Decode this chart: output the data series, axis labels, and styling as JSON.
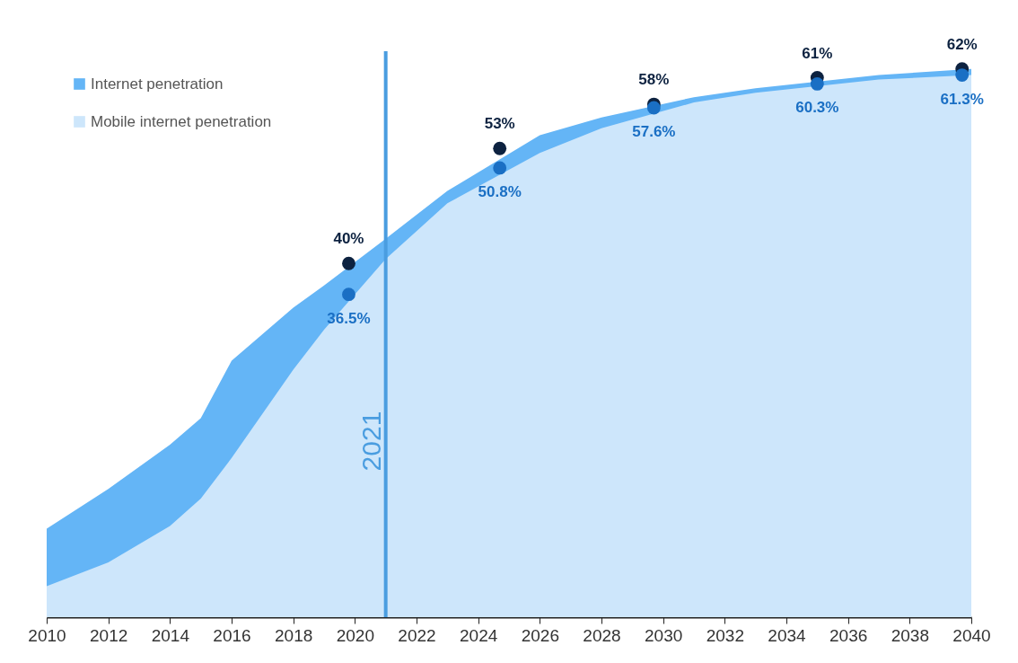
{
  "chart_data": {
    "type": "area",
    "x": [
      2010,
      2012,
      2014,
      2015,
      2016,
      2018,
      2019,
      2021,
      2023,
      2026,
      2028,
      2031,
      2033,
      2037,
      2040
    ],
    "series": [
      {
        "name": "Internet penetration",
        "color": "#64b5f6",
        "values": [
          10,
          14.5,
          19.5,
          22.5,
          29,
          35,
          37.5,
          42.8,
          48.2,
          54.5,
          56.5,
          58.8,
          59.8,
          61.3,
          62
        ]
      },
      {
        "name": "Mobile internet penetration",
        "color": "#cde6fb",
        "values": [
          3.5,
          6.2,
          10.3,
          13.4,
          18,
          28,
          32.5,
          40.5,
          46.8,
          52.5,
          55.3,
          58.2,
          59.3,
          60.8,
          61.3
        ]
      },
      {
        "type": "scatter",
        "color": "#0d2240",
        "x": [
          2019.8,
          2024.7,
          2029.7,
          2035,
          2039.7
        ],
        "values": [
          40,
          53,
          58,
          61,
          62
        ],
        "value_labels": [
          "40%",
          "53%",
          "58%",
          "61%",
          "62%"
        ]
      },
      {
        "type": "scatter",
        "color": "#1a6fc4",
        "x": [
          2019.8,
          2024.7,
          2029.7,
          2035,
          2039.7
        ],
        "values": [
          36.5,
          50.8,
          57.6,
          60.3,
          61.3
        ],
        "value_labels": [
          "36.5%",
          "50.8%",
          "57.6%",
          "60.3%",
          "61.3%"
        ]
      }
    ],
    "xlim": [
      2010,
      2040
    ],
    "xticks": [
      2010,
      2012,
      2014,
      2016,
      2018,
      2020,
      2022,
      2024,
      2026,
      2028,
      2030,
      2032,
      2034,
      2036,
      2038,
      2040
    ],
    "ylim": [
      0,
      64
    ],
    "tick_labels": "x",
    "grid": false,
    "legend": "top left",
    "ref_lines": [
      {
        "axis": "x",
        "value": 2021,
        "label": "2021",
        "color": "#4a9de0"
      }
    ]
  }
}
